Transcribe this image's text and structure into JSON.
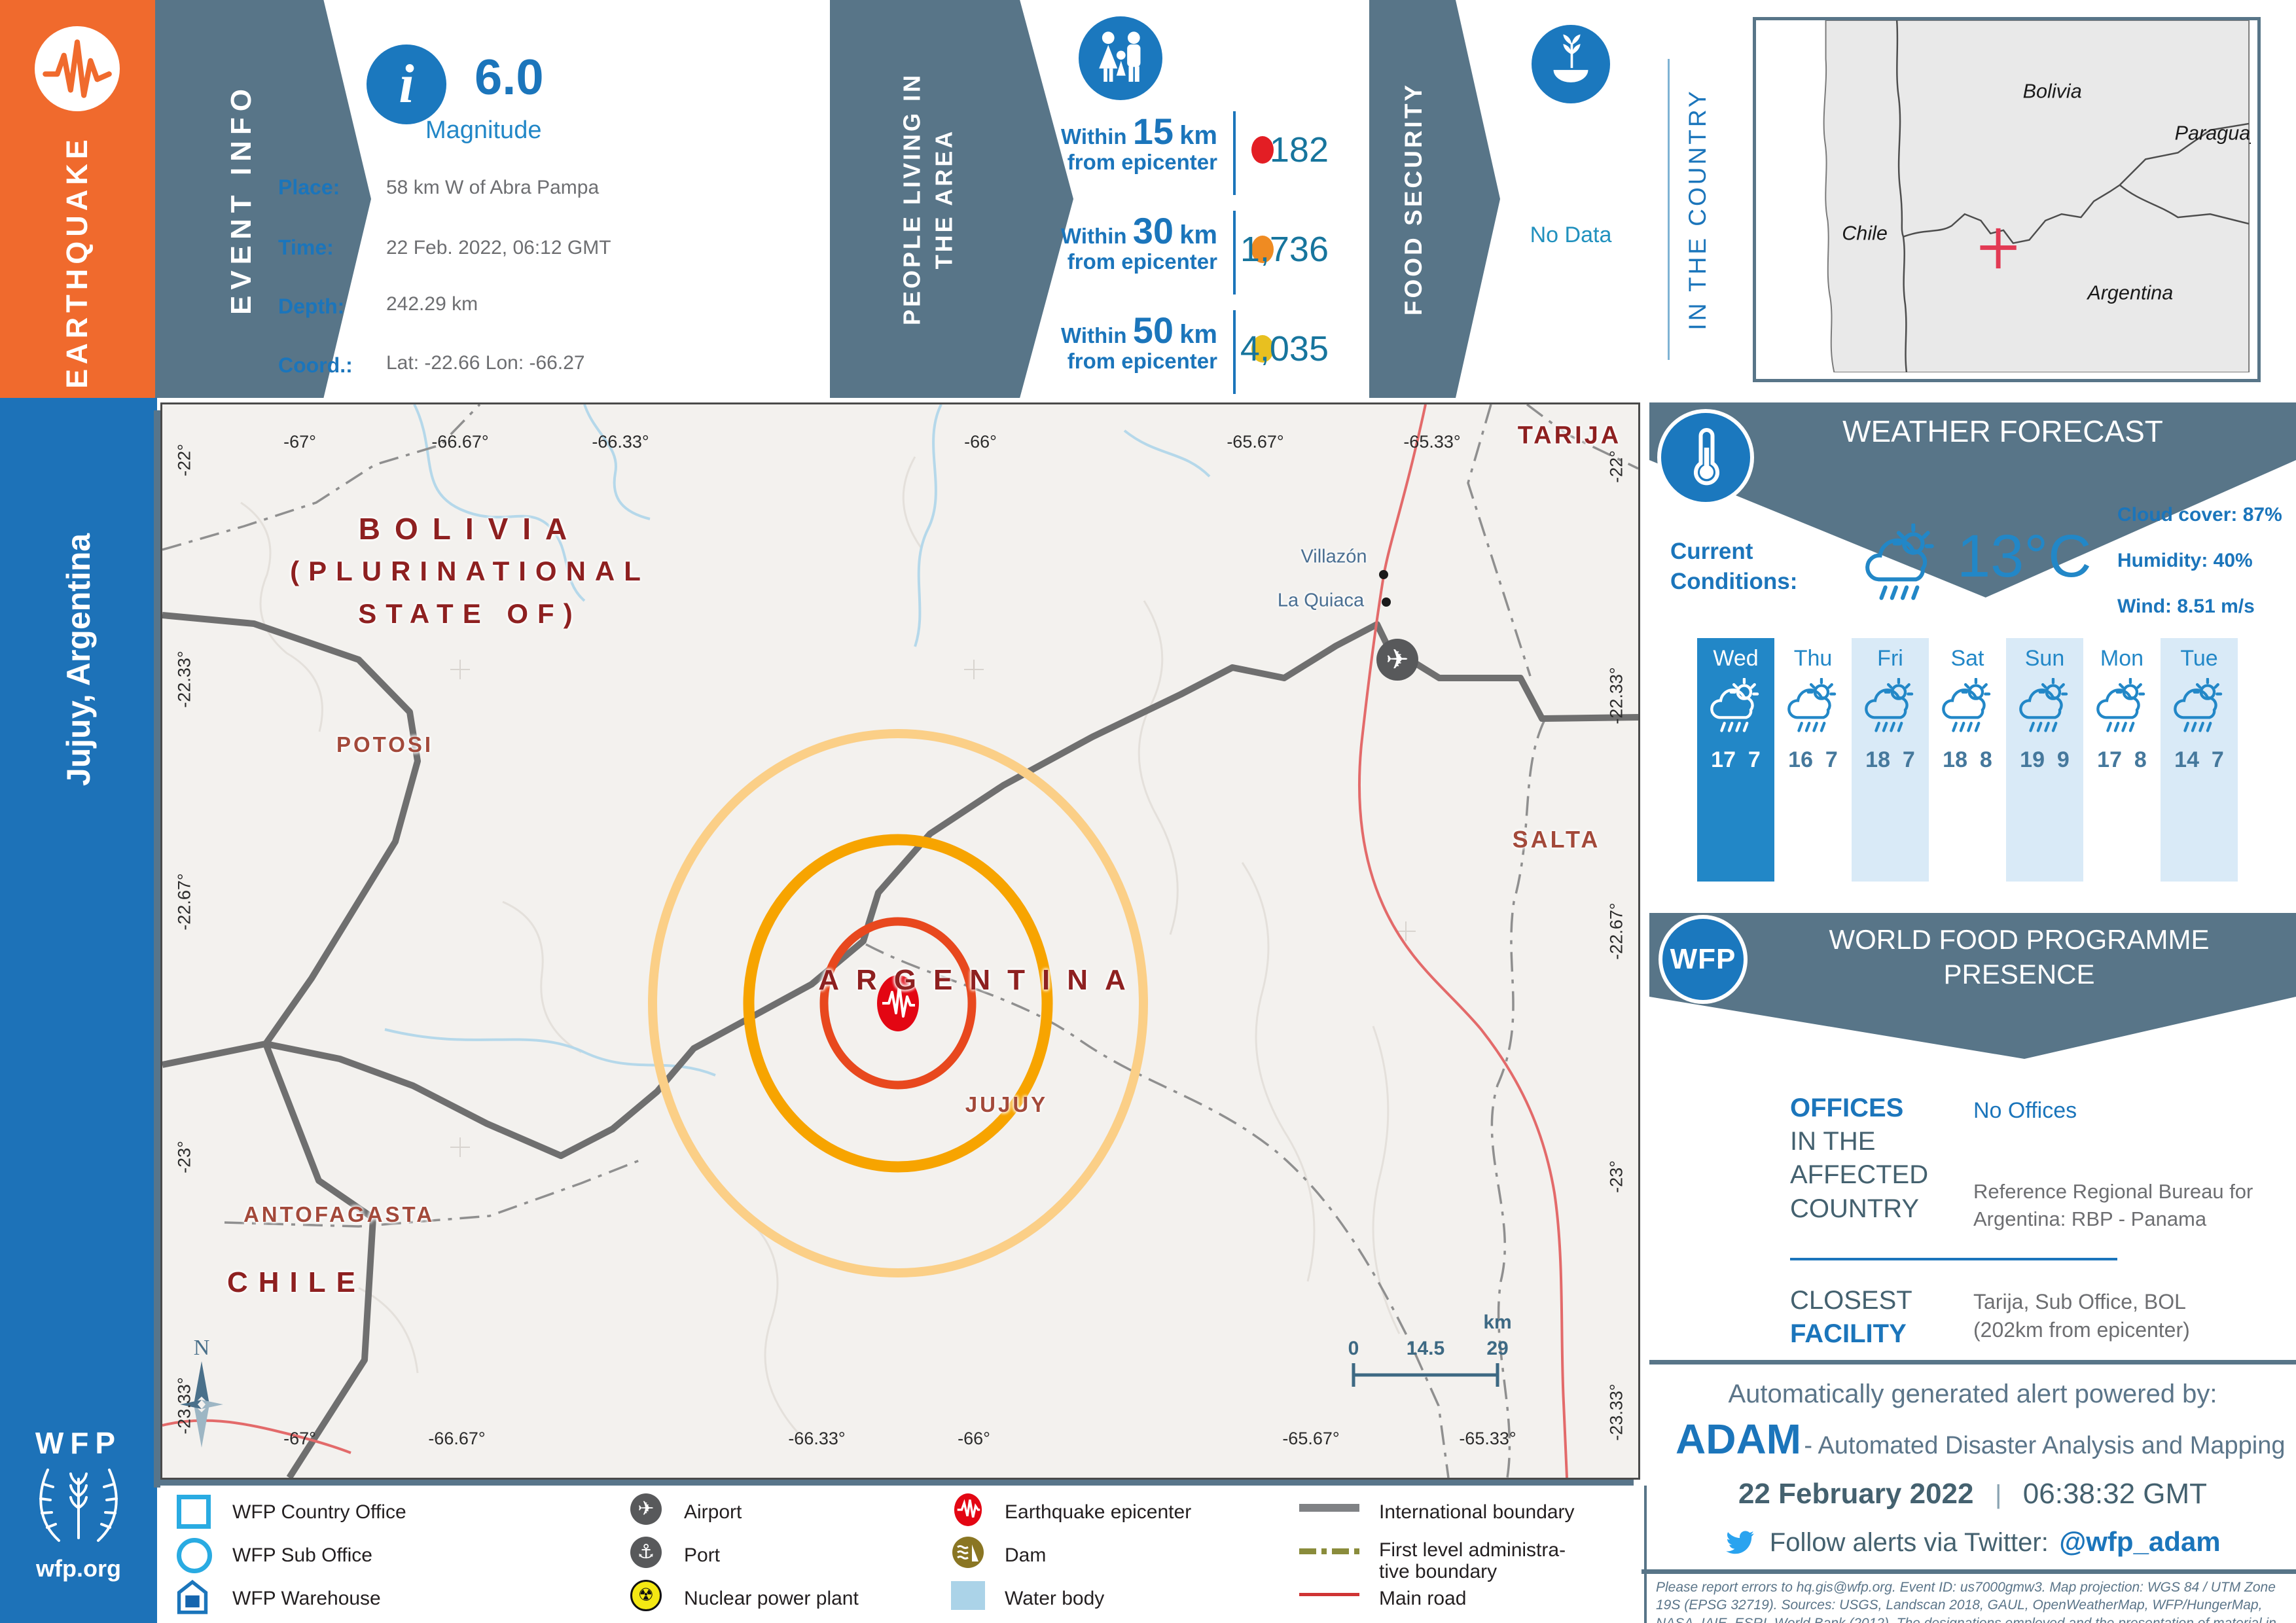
{
  "palette": {
    "orange": "#f06a2d",
    "slate": "#587588",
    "blue": "#1b75bb",
    "light_blue": "#2287c7",
    "value_teal": "#17759d",
    "sidebar_blue": "#1d72b8",
    "circle_red": "#e8481e",
    "circle_orange": "#f7a400",
    "circle_pale": "#fbcf87",
    "country_red": "#8e2020"
  },
  "banner": {
    "title": "EARTHQUAKE"
  },
  "event_info": {
    "section": "EVENT INFO",
    "magnitude_value": "6.0",
    "magnitude_label": "Magnitude",
    "place_label": "Place:",
    "place": "58 km W of Abra Pampa",
    "time_label": "Time:",
    "time": "22 Feb. 2022, 06:12 GMT",
    "depth_label": "Depth:",
    "depth": "242.29 km",
    "coord_label": "Coord.:",
    "coord": "Lat: -22.66 Lon: -66.27"
  },
  "people": {
    "section_line1": "PEOPLE LIVING IN",
    "section_line2": "THE AREA",
    "rows": [
      {
        "prefix": "Within",
        "radius": "15",
        "unit": "km",
        "suffix": "from epicenter",
        "value": "182",
        "dot_color": "#e31e24"
      },
      {
        "prefix": "Within",
        "radius": "30",
        "unit": "km",
        "suffix": "from epicenter",
        "value": "1,736",
        "dot_color": "#ef8b22"
      },
      {
        "prefix": "Within",
        "radius": "50",
        "unit": "km",
        "suffix": "from epicenter",
        "value": "4,035",
        "dot_color": "#e8c020"
      }
    ]
  },
  "food_security": {
    "section": "FOOD SECURITY",
    "value": "No Data",
    "context": "IN THE COUNTRY"
  },
  "inset": {
    "bolivia": "Bolivia",
    "paraguay": "Paraguay",
    "chile": "Chile",
    "argentina": "Argentina"
  },
  "sidebar": {
    "location": "Jujuy, Argentina",
    "logo": "WFP",
    "site": "wfp.org"
  },
  "weather": {
    "title": "WEATHER FORECAST",
    "current_label_1": "Current",
    "current_label_2": "Conditions:",
    "temp": "13°C",
    "stats": [
      {
        "label": "Cloud cover:",
        "value": "87%"
      },
      {
        "label": "Humidity:",
        "value": "40%"
      },
      {
        "label": "Wind:",
        "value": "8.51 m/s"
      }
    ],
    "days": [
      {
        "label": "Wed",
        "hi": "17",
        "lo": "7"
      },
      {
        "label": "Thu",
        "hi": "16",
        "lo": "7"
      },
      {
        "label": "Fri",
        "hi": "18",
        "lo": "7"
      },
      {
        "label": "Sat",
        "hi": "18",
        "lo": "8"
      },
      {
        "label": "Sun",
        "hi": "19",
        "lo": "9"
      },
      {
        "label": "Mon",
        "hi": "17",
        "lo": "8"
      },
      {
        "label": "Tue",
        "hi": "14",
        "lo": "7"
      }
    ]
  },
  "wfp_presence": {
    "title_line1": "WORLD FOOD PROGRAMME",
    "title_line2": "PRESENCE",
    "logo": "WFP",
    "offices_key_1": "OFFICES",
    "offices_key_2": "IN THE",
    "offices_key_3": "AFFECTED",
    "offices_key_4": "COUNTRY",
    "offices_value_1": "No Offices",
    "offices_value_2a": "Reference Regional Bureau for",
    "offices_value_2b": "Argentina: RBP - Panama",
    "closest_key_1": "CLOSEST",
    "closest_key_2": "FACILITY",
    "closest_value_1": "Tarija, Sub Office, BOL",
    "closest_value_2": "(202km from epicenter)"
  },
  "adam": {
    "powered": "Automatically generated alert powered by:",
    "name": "ADAM",
    "tagline": "- Automated Disaster Analysis and Mapping",
    "date": "22 February 2022",
    "pipe": "|",
    "time": "06:38:32 GMT",
    "twitter_label": "Follow alerts via Twitter:",
    "twitter_handle": "@wfp_adam"
  },
  "disclaimer": "Please report errors to hq.gis@wfp.org. Event ID: us7000gmw3. Map projection: WGS 84 / UTM Zone 19S (EPSG 32719). Sources: USGS, Landscan 2018, GAUL, OpenWeatherMap, WFP/HungerMap, NASA, IAIE, ESRI, World Bank (2012). The designations employed and the presentation of material in this map do not imply the expression of any opinion whatsoever of WFP concerning the legal or constitutional status of any country, territory or sea area, or concerning the delimitation of frontiers.",
  "legend": {
    "items": [
      {
        "label": "WFP Country Office",
        "icon": "wfp-country-office"
      },
      {
        "label": "WFP Sub Office",
        "icon": "wfp-sub-office"
      },
      {
        "label": "WFP Warehouse",
        "icon": "wfp-warehouse"
      },
      {
        "label": "Airport",
        "icon": "airport",
        "glyph": "✈"
      },
      {
        "label": "Port",
        "icon": "port",
        "glyph": "⚓"
      },
      {
        "label": "Nuclear power plant",
        "icon": "nuclear",
        "glyph": "☢"
      },
      {
        "label": "Earthquake epicenter",
        "icon": "epicenter"
      },
      {
        "label": "Dam",
        "icon": "dam"
      },
      {
        "label": "Water body",
        "icon": "water-body"
      },
      {
        "label": "International boundary",
        "icon": "international-boundary"
      },
      {
        "label_a": "First level administra-",
        "label_b": "tive boundary",
        "icon": "admin-boundary"
      },
      {
        "label": "Main road",
        "icon": "main-road"
      }
    ]
  },
  "map": {
    "axis_top": [
      "-67°",
      "-66.67°",
      "-66.33°",
      "-66°",
      "-65.67°",
      "-65.33°"
    ],
    "axis_bottom": [
      "-67°",
      "-66.67°",
      "-66.33°",
      "-66°",
      "-65.67°",
      "-65.33°"
    ],
    "axis_left": [
      "-22°",
      "-22.33°",
      "-22.67°",
      "-23°",
      "-23.33°"
    ],
    "axis_right": [
      "-22°",
      "-22.33°",
      "-22.67°",
      "-23°",
      "-23.33°"
    ],
    "labels": {
      "bolivia_1": "BOLIVIA",
      "bolivia_2": "(PLURINATIONAL",
      "bolivia_3": "STATE OF)",
      "potosi": "POTOSI",
      "argentina": "ARGENTINA",
      "jujuy": "JUJUY",
      "salta": "SALTA",
      "tarija": "TARIJA",
      "antofagasta": "ANTOFAGASTA",
      "chile": "CHILE",
      "villazon": "Villazón",
      "la_quiaca": "La Quiaca"
    },
    "scalebar": {
      "zero": "0",
      "mid": "14.5",
      "end": "29",
      "unit": "km"
    },
    "compass": "N"
  }
}
